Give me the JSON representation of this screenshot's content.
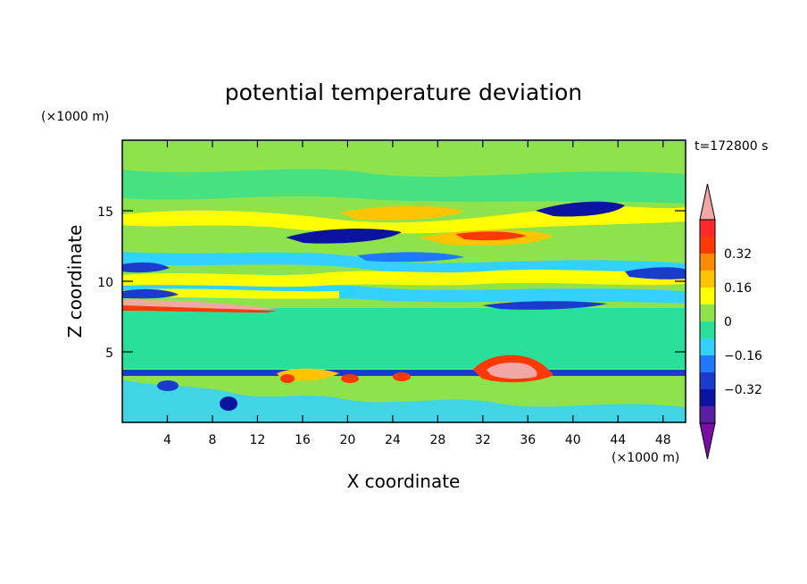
{
  "chart_data": {
    "type": "heatmap",
    "title": "potential temperature deviation",
    "xlabel": "X coordinate",
    "ylabel": "Z coordinate",
    "x_unit": "(×1000 m)",
    "y_unit": "(×1000 m)",
    "time_label": "t=172800 s",
    "xlim": [
      0,
      50
    ],
    "ylim": [
      0,
      20
    ],
    "x_ticks": [
      4,
      8,
      12,
      16,
      20,
      24,
      28,
      32,
      36,
      40,
      44,
      48
    ],
    "y_ticks": [
      5,
      10,
      15
    ],
    "colorbar": {
      "levels": [
        -0.48,
        -0.4,
        -0.32,
        -0.24,
        -0.16,
        -0.08,
        0,
        0.08,
        0.16,
        0.24,
        0.32,
        0.4,
        0.48
      ],
      "tick_labels": [
        "0.32",
        "0.16",
        "0",
        "−0.16",
        "−0.32"
      ],
      "tick_values": [
        0.32,
        0.16,
        0,
        -0.16,
        -0.32
      ],
      "colors": [
        "#7a0fa6",
        "#5a1fa0",
        "#0a14a0",
        "#1a3ccc",
        "#1f78ff",
        "#33d1ff",
        "#29e09a",
        "#8fe34a",
        "#ffff00",
        "#ffc400",
        "#ff8c00",
        "#ff3a00",
        "#ff2a2a",
        "#f2a7a7"
      ]
    },
    "features": [
      {
        "x": 22,
        "z": 13.4,
        "value": -0.32
      },
      {
        "x": 42,
        "z": 15.2,
        "value": -0.32
      },
      {
        "x": 28,
        "z": 15.2,
        "value": 0.24
      },
      {
        "x": 31,
        "z": 13.2,
        "value": 0.24
      },
      {
        "x": 9,
        "z": 8.5,
        "value": 0.4
      },
      {
        "x": 35,
        "z": 4.0,
        "value": 0.4
      },
      {
        "x": 10,
        "z": 1.5,
        "value": -0.32
      }
    ]
  }
}
